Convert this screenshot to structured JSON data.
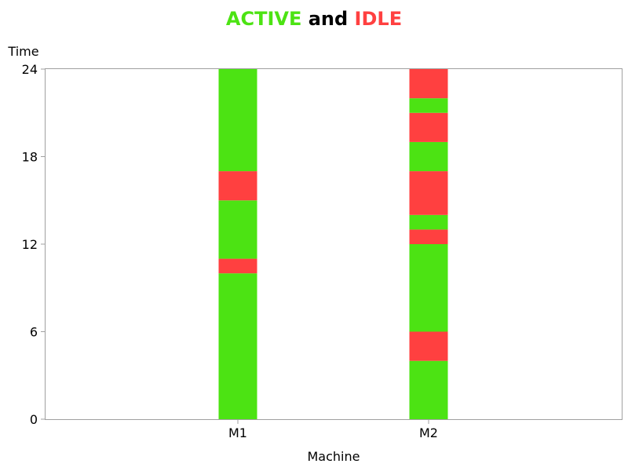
{
  "chart_data": {
    "type": "bar",
    "title_parts": [
      {
        "text": "ACTIVE",
        "color": "#4ce313"
      },
      {
        "text": " and ",
        "color": "#000000"
      },
      {
        "text": "IDLE",
        "color": "#ff4040"
      }
    ],
    "xlabel": "Machine",
    "ylabel": "Time",
    "ylim": [
      0,
      24
    ],
    "yticks": [
      "0",
      "6",
      "12",
      "18",
      "24"
    ],
    "ytick_values": [
      0,
      6,
      12,
      18,
      24
    ],
    "grid": false,
    "categories": [
      "M1",
      "M2"
    ],
    "state_colors": {
      "ACTIVE": "#4ce313",
      "IDLE": "#ff4040"
    },
    "segments": [
      [
        {
          "state": "ACTIVE",
          "start": 0,
          "end": 10
        },
        {
          "state": "IDLE",
          "start": 10,
          "end": 11
        },
        {
          "state": "ACTIVE",
          "start": 11,
          "end": 15
        },
        {
          "state": "IDLE",
          "start": 15,
          "end": 17
        },
        {
          "state": "ACTIVE",
          "start": 17,
          "end": 24
        }
      ],
      [
        {
          "state": "ACTIVE",
          "start": 0,
          "end": 4
        },
        {
          "state": "IDLE",
          "start": 4,
          "end": 6
        },
        {
          "state": "ACTIVE",
          "start": 6,
          "end": 12
        },
        {
          "state": "IDLE",
          "start": 12,
          "end": 13
        },
        {
          "state": "ACTIVE",
          "start": 13,
          "end": 14
        },
        {
          "state": "IDLE",
          "start": 14,
          "end": 17
        },
        {
          "state": "ACTIVE",
          "start": 17,
          "end": 19
        },
        {
          "state": "IDLE",
          "start": 19,
          "end": 21
        },
        {
          "state": "ACTIVE",
          "start": 21,
          "end": 22
        },
        {
          "state": "IDLE",
          "start": 22,
          "end": 24
        }
      ]
    ]
  }
}
